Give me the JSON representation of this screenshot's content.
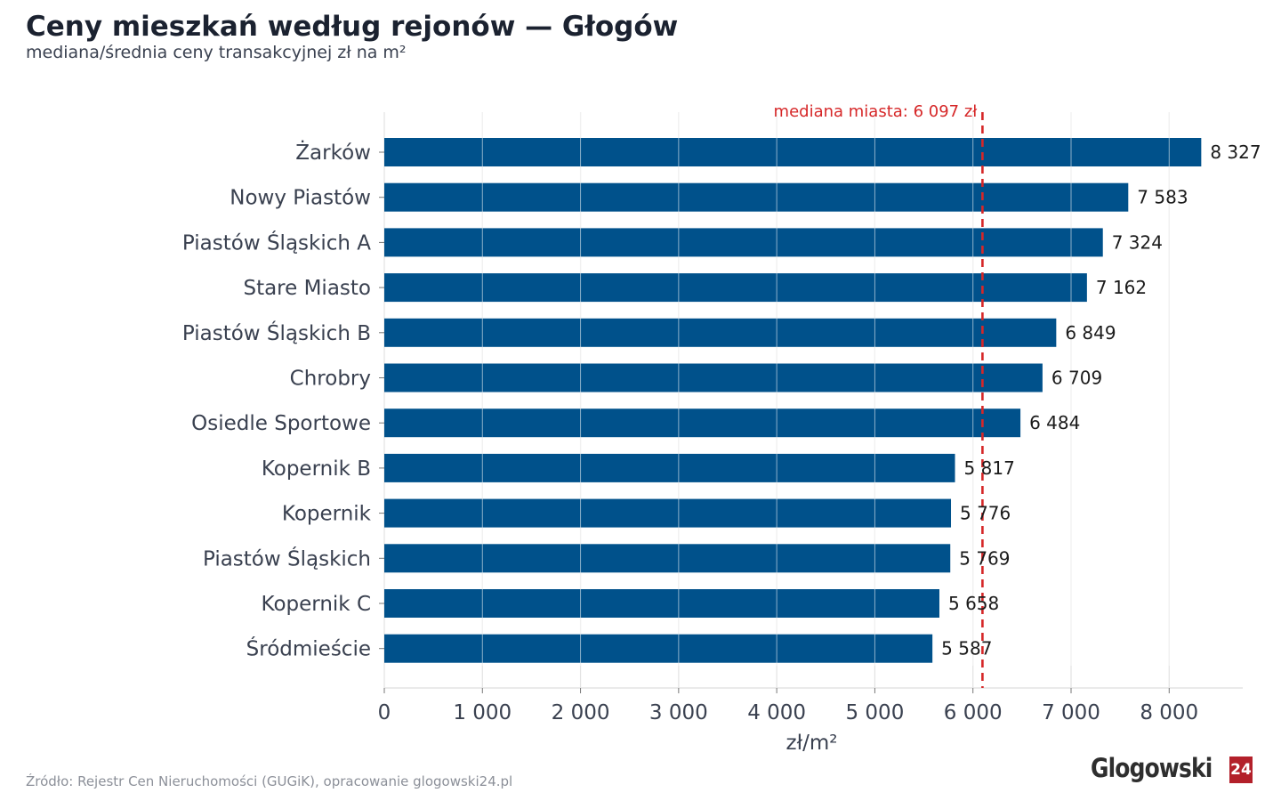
{
  "title": "Ceny mieszkań według rejonów — Głogów",
  "subtitle": "mediana/średnia ceny transakcyjnej zł na m²",
  "source": "Źródło: Rejestr Cen Nieruchomości (GUGiK), opracowanie glogowski24.pl",
  "logo": {
    "text": "Glogowski",
    "badge": "24"
  },
  "chart_data": {
    "type": "bar",
    "orientation": "horizontal",
    "categories": [
      "Żarków",
      "Nowy Piastów",
      "Piastów Śląskich A",
      "Stare Miasto",
      "Piastów Śląskich B",
      "Chrobry",
      "Osiedle Sportowe",
      "Kopernik B",
      "Kopernik",
      "Piastów Śląskich",
      "Kopernik C",
      "Śródmieście"
    ],
    "values": [
      8327,
      7583,
      7324,
      7162,
      6849,
      6709,
      6484,
      5817,
      5776,
      5769,
      5658,
      5587
    ],
    "value_labels": [
      "8 327",
      "7 583",
      "7 324",
      "7 162",
      "6 849",
      "6 709",
      "6 484",
      "5 817",
      "5 776",
      "5 769",
      "5 658",
      "5 587"
    ],
    "xlabel": "zł/m²",
    "ylabel": "",
    "xlim": [
      0,
      8750
    ],
    "x_ticks": [
      0,
      1000,
      2000,
      3000,
      4000,
      5000,
      6000,
      7000,
      8000
    ],
    "x_tick_labels": [
      "0",
      "1 000",
      "2 000",
      "3 000",
      "4 000",
      "5 000",
      "6 000",
      "7 000",
      "8 000"
    ],
    "grid": "vertical",
    "reference_line": {
      "value": 6097,
      "label": "mediana miasta: 6 097 zł",
      "color": "#d62728",
      "style": "dashed"
    },
    "colors": {
      "bar": "#00518b",
      "grid": "#e3e3e3",
      "axis_text": "#3a4150",
      "value_text": "#1b1b1b"
    }
  }
}
